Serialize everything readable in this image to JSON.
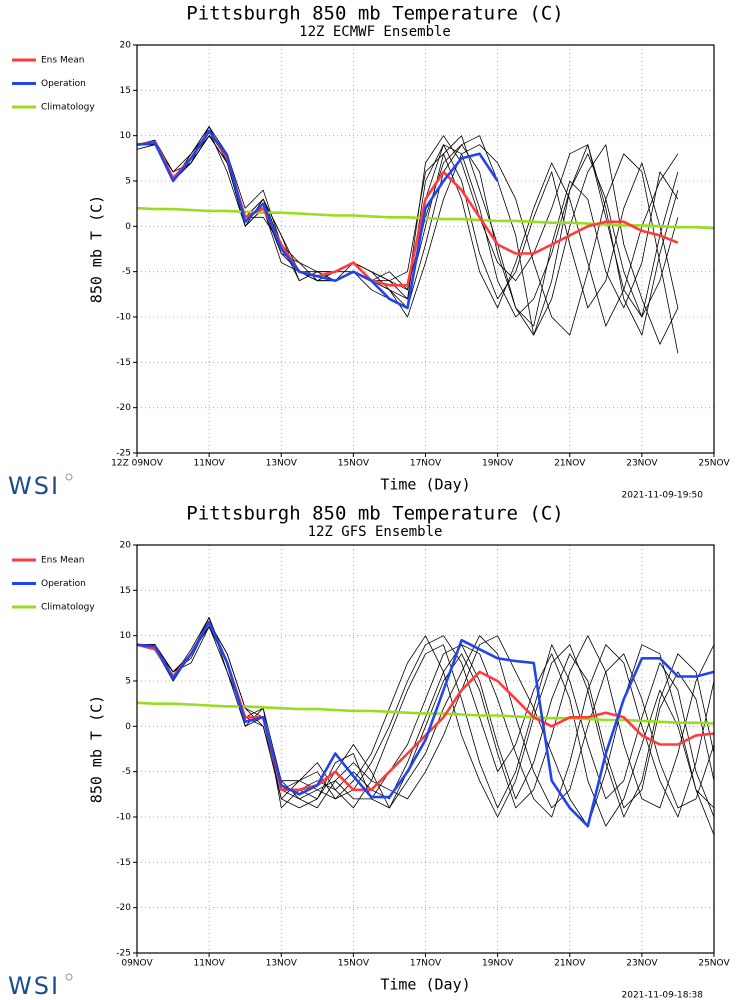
{
  "chart_data": [
    {
      "type": "line",
      "title": "Pittsburgh 850 mb Temperature (C)",
      "subtitle": "12Z ECMWF Ensemble",
      "y_label": "850 mb T (C)",
      "x_label": "Time (Day)",
      "timestamp": "2021-11-09-19:50",
      "brand": "WSI",
      "grid": true,
      "x": [
        0,
        0.5,
        1,
        1.5,
        2,
        2.5,
        3,
        3.5,
        4,
        4.5,
        5,
        5.5,
        6,
        6.5,
        7,
        7.5,
        8,
        8.5,
        9,
        9.5,
        10,
        10.5,
        11,
        11.5,
        12,
        12.5,
        13,
        13.5,
        14,
        14.5,
        15,
        15.5,
        16
      ],
      "xlim": [
        0,
        16
      ],
      "xticks": [
        {
          "value": 0,
          "label": "12Z 09NOV"
        },
        {
          "value": 2,
          "label": "11NOV"
        },
        {
          "value": 4,
          "label": "13NOV"
        },
        {
          "value": 6,
          "label": "15NOV"
        },
        {
          "value": 8,
          "label": "17NOV"
        },
        {
          "value": 10,
          "label": "19NOV"
        },
        {
          "value": 12,
          "label": "21NOV"
        },
        {
          "value": 14,
          "label": "23NOV"
        },
        {
          "value": 16,
          "label": "25NOV"
        }
      ],
      "ylim": [
        -25,
        20
      ],
      "yticks": [
        -25,
        -20,
        -15,
        -10,
        -5,
        0,
        5,
        10,
        15,
        20
      ],
      "members_color": "#000000",
      "members": [
        [
          9,
          9.5,
          5,
          8,
          11,
          8,
          1,
          3,
          -1,
          -5,
          -6,
          -5,
          -4,
          -5,
          -6,
          -8,
          5,
          9,
          8,
          2,
          -6,
          -10,
          -8,
          -3,
          4,
          8,
          3,
          -5,
          -10,
          -6,
          1,
          null,
          null
        ],
        [
          9,
          9,
          6,
          7,
          10,
          7,
          0,
          2,
          -3,
          -5,
          -5,
          -6,
          -5,
          -6,
          -7,
          -9,
          -2,
          6,
          9,
          10,
          5,
          -1,
          -12,
          -8,
          0,
          6,
          9,
          -2,
          -8,
          -13,
          -9,
          null,
          null
        ],
        [
          9,
          9.4,
          5.5,
          7,
          11,
          7,
          1,
          1,
          -2,
          -6,
          -5,
          -5,
          -4,
          -5,
          -6,
          -5,
          6,
          8,
          3,
          -5,
          -9,
          -4,
          2,
          7,
          3,
          -4,
          -11,
          -7,
          0,
          5,
          8,
          null,
          null
        ],
        [
          8.5,
          9,
          5,
          7.5,
          10,
          8,
          2,
          4,
          -2,
          -4,
          -6,
          -5,
          -5,
          -6,
          -5,
          -7,
          1,
          7,
          9,
          6,
          -3,
          -9,
          -12,
          -6,
          4,
          9,
          2,
          -8,
          -12,
          -3,
          4,
          null,
          null
        ],
        [
          9,
          9.3,
          5,
          8,
          10.5,
          6,
          0,
          2,
          -4,
          -5,
          -6,
          -6,
          -5,
          -7,
          -8,
          -9,
          3,
          9,
          5,
          -3,
          -8,
          -5,
          1,
          6,
          -2,
          -9,
          -6,
          2,
          7,
          0,
          -9,
          null,
          null
        ],
        [
          9,
          9,
          5,
          7,
          10,
          8,
          1,
          3,
          -1,
          -6,
          -5,
          -5,
          -4,
          -5,
          -7,
          -10,
          -4,
          3,
          8,
          9,
          7,
          3,
          -4,
          -10,
          -12,
          -5,
          3,
          8,
          6,
          -4,
          -14,
          null,
          null
        ],
        [
          9,
          9.5,
          6,
          8,
          11,
          7,
          1,
          2,
          -3,
          -4,
          -5,
          -6,
          -5,
          -6,
          -6,
          -7,
          7,
          10,
          7,
          1,
          -4,
          -6,
          -3,
          2,
          8,
          9,
          1,
          -7,
          -10,
          -1,
          6,
          null,
          null
        ],
        [
          9,
          9,
          5,
          7,
          10,
          7,
          0,
          3,
          -2,
          -5,
          -6,
          -6,
          -4,
          -6,
          -7,
          -8,
          0,
          8,
          10,
          4,
          -2,
          -9,
          -11,
          -2,
          5,
          3,
          -5,
          -9,
          -4,
          6,
          3,
          null,
          null
        ]
      ],
      "series": [
        {
          "name": "Ens Mean",
          "color": "#ff3b3b",
          "values": [
            9,
            9.3,
            5.3,
            7.5,
            10.5,
            7.5,
            1,
            2,
            -2,
            -5,
            -5.5,
            -5,
            -4,
            -6,
            -6.5,
            -6.5,
            3,
            6,
            4,
            1,
            -2,
            -3,
            -3,
            -2,
            -1,
            0,
            0.5,
            0.5,
            -0.5,
            -1,
            -1.8,
            null,
            null
          ]
        },
        {
          "name": "Operation",
          "color": "#2244ee",
          "values": [
            9,
            9.2,
            5,
            7.5,
            10.5,
            7.8,
            0.5,
            2.5,
            -2.5,
            -5,
            -5.5,
            -6,
            -5,
            -6,
            -8,
            -9,
            2,
            5,
            7.5,
            8,
            5,
            null,
            null,
            null,
            null,
            null,
            null,
            null,
            null,
            null,
            null,
            null,
            null
          ]
        },
        {
          "name": "Climatology",
          "color": "#99dd22",
          "values": [
            2.0,
            1.9,
            1.9,
            1.8,
            1.7,
            1.7,
            1.6,
            1.5,
            1.5,
            1.4,
            1.3,
            1.2,
            1.2,
            1.1,
            1.0,
            1.0,
            0.9,
            0.8,
            0.8,
            0.7,
            0.6,
            0.6,
            0.5,
            0.4,
            0.4,
            0.3,
            0.2,
            0.1,
            0.1,
            0.0,
            -0.1,
            -0.1,
            -0.2
          ]
        }
      ]
    },
    {
      "type": "line",
      "title": "Pittsburgh 850 mb Temperature (C)",
      "subtitle": "12Z GFS Ensemble",
      "y_label": "850 mb T (C)",
      "x_label": "Time (Day)",
      "timestamp": "2021-11-09-18:38",
      "brand": "WSI",
      "grid": true,
      "x": [
        0,
        0.5,
        1,
        1.5,
        2,
        2.5,
        3,
        3.5,
        4,
        4.5,
        5,
        5.5,
        6,
        6.5,
        7,
        7.5,
        8,
        8.5,
        9,
        9.5,
        10,
        10.5,
        11,
        11.5,
        12,
        12.5,
        13,
        13.5,
        14,
        14.5,
        15,
        15.5,
        16
      ],
      "xlim": [
        0,
        16
      ],
      "xticks": [
        {
          "value": 0,
          "label": "09NOV"
        },
        {
          "value": 2,
          "label": "11NOV"
        },
        {
          "value": 4,
          "label": "13NOV"
        },
        {
          "value": 6,
          "label": "15NOV"
        },
        {
          "value": 8,
          "label": "17NOV"
        },
        {
          "value": 10,
          "label": "19NOV"
        },
        {
          "value": 12,
          "label": "21NOV"
        },
        {
          "value": 14,
          "label": "23NOV"
        },
        {
          "value": 16,
          "label": "25NOV"
        }
      ],
      "ylim": [
        -25,
        20
      ],
      "yticks": [
        -25,
        -20,
        -15,
        -10,
        -5,
        0,
        5,
        10,
        15,
        20
      ],
      "members_color": "#000000",
      "members": [
        [
          9,
          9,
          6,
          8,
          12,
          7,
          1,
          1,
          -7,
          -8,
          -7,
          -6,
          -8,
          -8,
          -5,
          -2,
          3,
          8,
          9,
          5,
          -2,
          -8,
          -4,
          3,
          8,
          5,
          -3,
          -9,
          -7,
          2,
          6,
          3,
          -6
        ],
        [
          9,
          8.5,
          5,
          8,
          11,
          6,
          0,
          2,
          -6,
          -6,
          -4,
          -7,
          -9,
          -6,
          -1,
          4,
          8,
          9,
          3,
          -4,
          -9,
          -5,
          2,
          9,
          5,
          -2,
          -8,
          -6,
          1,
          7,
          4,
          -5,
          -10
        ],
        [
          9,
          9,
          6,
          7.5,
          11.5,
          8,
          2,
          0,
          -8,
          -9,
          -8,
          -4,
          -3,
          -8,
          -9,
          -6,
          -3,
          2,
          6,
          10,
          8,
          1,
          -5,
          -9,
          -7,
          0,
          6,
          8,
          3,
          -4,
          -9,
          -8,
          -2
        ],
        [
          9,
          8.8,
          5.5,
          8.5,
          12,
          7,
          1,
          1,
          -7,
          -6,
          -5,
          -8,
          -6,
          -3,
          2,
          7,
          10,
          6,
          -1,
          -6,
          -10,
          -6,
          1,
          7,
          9,
          4,
          -4,
          -10,
          -6,
          3,
          8,
          6,
          -3
        ],
        [
          9,
          9,
          5.5,
          8,
          11,
          7,
          1,
          2,
          -9,
          -7,
          -6,
          -7,
          -5,
          -7,
          -8,
          -4,
          1,
          6,
          9,
          8,
          3,
          -3,
          -8,
          -10,
          -4,
          4,
          9,
          7,
          0,
          -6,
          -10,
          -4,
          5
        ],
        [
          9,
          8.5,
          6,
          7,
          11,
          7,
          0,
          1,
          -6,
          -8,
          -9,
          -6,
          -4,
          -6,
          -7,
          -8,
          -5,
          -1,
          4,
          9,
          10,
          6,
          2,
          -3,
          -8,
          -11,
          -5,
          3,
          9,
          8,
          1,
          -7,
          -12
        ],
        [
          9,
          9,
          5,
          8,
          12,
          6,
          1,
          0,
          -7,
          -7,
          -8,
          -5,
          -2,
          -5,
          -9,
          -5,
          0,
          5,
          8,
          4,
          -3,
          -9,
          -7,
          -1,
          6,
          10,
          6,
          -2,
          -8,
          -9,
          -3,
          5,
          9
        ],
        [
          9,
          9,
          6,
          8,
          11.5,
          8,
          2,
          1,
          -8,
          -6,
          -7,
          -8,
          -7,
          -4,
          0,
          5,
          9,
          10,
          7,
          1,
          -5,
          -2,
          4,
          8,
          3,
          -6,
          -11,
          -8,
          -2,
          4,
          0,
          -7,
          -9
        ]
      ],
      "series": [
        {
          "name": "Ens Mean",
          "color": "#ff3b3b",
          "values": [
            9,
            8.5,
            5.5,
            8,
            11.5,
            7,
            1,
            1,
            -7,
            -7,
            -6.5,
            -5,
            -7,
            -7,
            -5,
            -3,
            -1,
            1,
            4,
            6,
            5,
            3,
            1,
            0,
            1,
            1,
            1.5,
            1,
            -1,
            -2,
            -2,
            -1,
            -0.8
          ]
        },
        {
          "name": "Operation",
          "color": "#2244ee",
          "values": [
            9,
            8.8,
            5.3,
            8,
            11.5,
            7,
            0.5,
            1,
            -6.5,
            -7.5,
            -6.5,
            -3,
            -5.5,
            -7.8,
            -7.8,
            -5,
            -1.5,
            4,
            9.5,
            8.5,
            7.5,
            7.2,
            7,
            -6,
            -9,
            -11,
            -3,
            3,
            7.5,
            7.5,
            5.5,
            5.5,
            6
          ]
        },
        {
          "name": "Climatology",
          "color": "#99dd22",
          "values": [
            2.6,
            2.5,
            2.5,
            2.4,
            2.3,
            2.2,
            2.2,
            2.1,
            2.0,
            1.9,
            1.9,
            1.8,
            1.7,
            1.7,
            1.6,
            1.5,
            1.4,
            1.4,
            1.3,
            1.2,
            1.2,
            1.1,
            1.0,
            0.9,
            0.9,
            0.8,
            0.7,
            0.7,
            0.6,
            0.5,
            0.4,
            0.4,
            0.3
          ]
        }
      ]
    }
  ]
}
